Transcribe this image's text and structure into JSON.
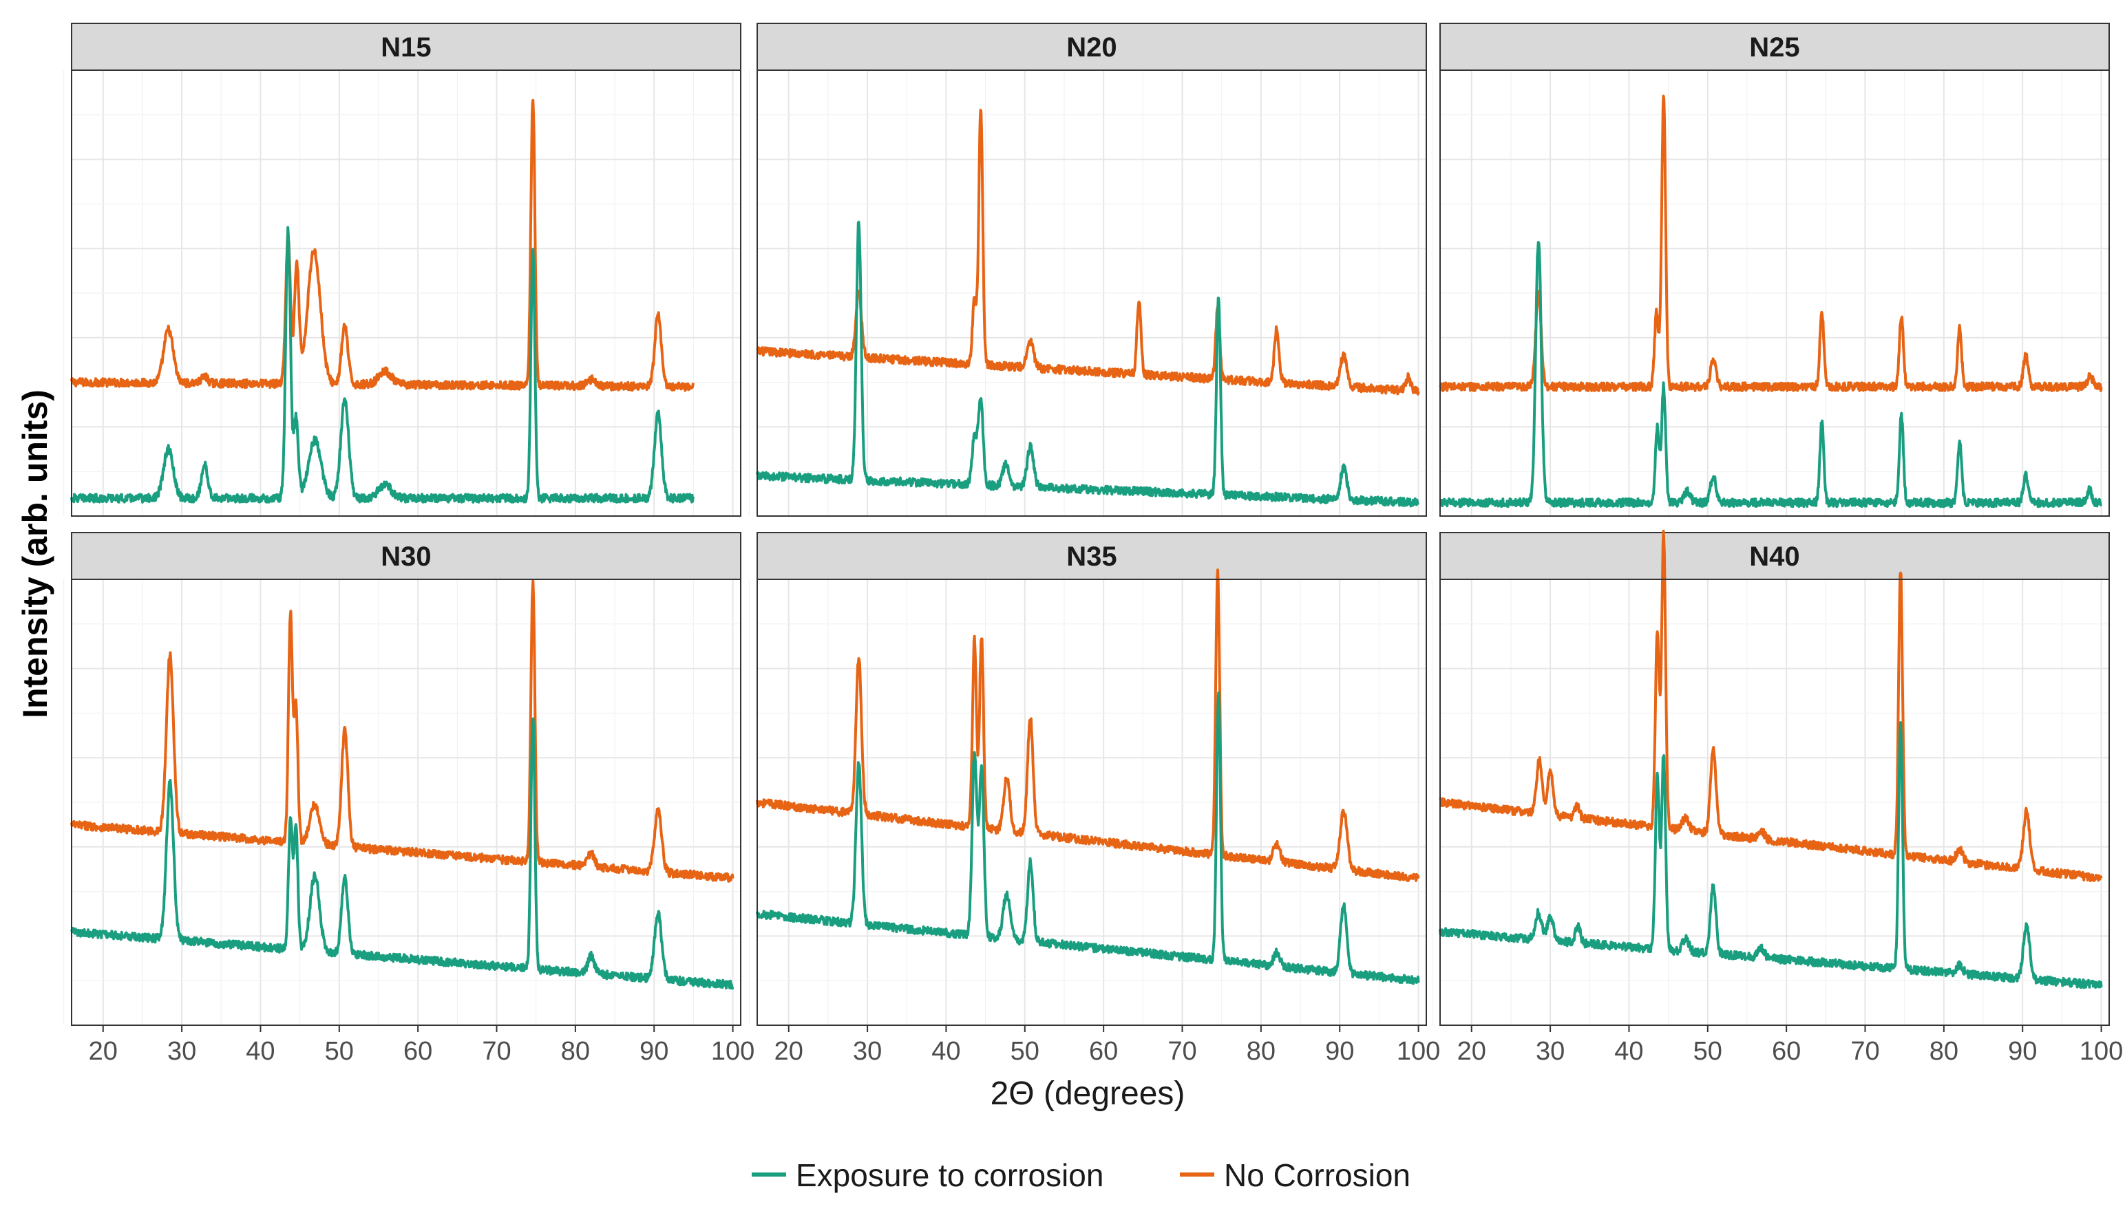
{
  "chart_data": {
    "type": "line",
    "layout": "facet-grid 2x3",
    "xlabel": "2Θ (degrees)",
    "ylabel": "Intensity (arb. units)",
    "xlim": [
      16,
      101
    ],
    "x_ticks": [
      "20",
      "30",
      "40",
      "50",
      "60",
      "70",
      "80",
      "90",
      "100"
    ],
    "x_tick_values": [
      20,
      30,
      40,
      50,
      60,
      70,
      80,
      90,
      100
    ],
    "ylim": [
      0,
      100
    ],
    "y_gridlines": [
      0,
      20,
      40,
      60,
      80
    ],
    "legend": {
      "position": "bottom",
      "entries": [
        {
          "label": "Exposure to corrosion",
          "color": "#1a9e80"
        },
        {
          "label": "No Corrosion",
          "color": "#e66414"
        }
      ]
    },
    "series_colors": {
      "exposure": "#1a9e80",
      "nocorrosion": "#e66414"
    },
    "panels": [
      {
        "name": "N15",
        "x_range": [
          16,
          95
        ],
        "exposure": {
          "base_start": 4.0,
          "base_end": 4.0,
          "peaks": [
            [
              28.3,
              11,
              0.6
            ],
            [
              32.9,
              7.5,
              0.4
            ],
            [
              43.5,
              60,
              0.3
            ],
            [
              44.5,
              18,
              0.3
            ],
            [
              46.9,
              13,
              0.8
            ],
            [
              50.7,
              22,
              0.5
            ],
            [
              55.8,
              3,
              0.8
            ],
            [
              74.6,
              56,
              0.25
            ],
            [
              90.5,
              19,
              0.45
            ]
          ]
        },
        "nocorrosion": {
          "base_start": 30.0,
          "base_end": 29.0,
          "peaks": [
            [
              28.3,
              12,
              0.6
            ],
            [
              32.9,
              1.5,
              0.4
            ],
            [
              43.5,
              33,
              0.3
            ],
            [
              44.6,
              26,
              0.3
            ],
            [
              46.8,
              30,
              0.8
            ],
            [
              50.7,
              13,
              0.4
            ],
            [
              55.8,
              3,
              0.8
            ],
            [
              74.6,
              65,
              0.25
            ],
            [
              82.1,
              1.5,
              0.5
            ],
            [
              90.5,
              16,
              0.4
            ]
          ]
        }
      },
      {
        "name": "N20",
        "x_range": [
          16,
          100
        ],
        "exposure": {
          "base_start": 9.0,
          "base_end": 3.0,
          "peaks": [
            [
              28.9,
              58,
              0.3
            ],
            [
              43.6,
              11,
              0.3
            ],
            [
              44.4,
              19,
              0.3
            ],
            [
              47.6,
              5,
              0.4
            ],
            [
              50.7,
              9,
              0.4
            ],
            [
              74.6,
              45,
              0.25
            ],
            [
              90.5,
              7,
              0.4
            ]
          ]
        },
        "nocorrosion": {
          "base_start": 37.0,
          "base_end": 28.0,
          "peaks": [
            [
              28.9,
              15,
              0.35
            ],
            [
              43.6,
              15,
              0.25
            ],
            [
              44.4,
              58,
              0.25
            ],
            [
              50.7,
              6,
              0.4
            ],
            [
              64.5,
              17,
              0.25
            ],
            [
              74.5,
              16,
              0.25
            ],
            [
              82.0,
              12,
              0.3
            ],
            [
              90.5,
              7,
              0.4
            ],
            [
              98.7,
              3,
              0.3
            ]
          ]
        }
      },
      {
        "name": "N25",
        "x_range": [
          16,
          100
        ],
        "exposure": {
          "base_start": 3.0,
          "base_end": 3.0,
          "peaks": [
            [
              28.5,
              59,
              0.35
            ],
            [
              43.6,
              17,
              0.25
            ],
            [
              44.4,
              26,
              0.25
            ],
            [
              47.4,
              2.5,
              0.4
            ],
            [
              50.7,
              6,
              0.35
            ],
            [
              64.5,
              18,
              0.25
            ],
            [
              74.6,
              20,
              0.25
            ],
            [
              82.0,
              14,
              0.25
            ],
            [
              90.4,
              6,
              0.3
            ],
            [
              98.5,
              3,
              0.3
            ]
          ]
        },
        "nocorrosion": {
          "base_start": 29.0,
          "base_end": 29.0,
          "peaks": [
            [
              28.5,
              21,
              0.35
            ],
            [
              43.5,
              17,
              0.25
            ],
            [
              44.4,
              65,
              0.25
            ],
            [
              50.7,
              6,
              0.35
            ],
            [
              64.5,
              17,
              0.25
            ],
            [
              74.6,
              16,
              0.25
            ],
            [
              82.0,
              13,
              0.25
            ],
            [
              90.4,
              7,
              0.3
            ],
            [
              98.6,
              2.5,
              0.3
            ]
          ]
        }
      },
      {
        "name": "N30",
        "x_range": [
          16,
          100
        ],
        "exposure": {
          "base_start": 21.0,
          "base_end": 9.0,
          "peaks": [
            [
              28.5,
              35,
              0.45
            ],
            [
              43.8,
              29,
              0.25
            ],
            [
              44.5,
              27,
              0.25
            ],
            [
              46.9,
              17,
              0.6
            ],
            [
              50.7,
              17,
              0.4
            ],
            [
              74.6,
              57,
              0.25
            ],
            [
              82.0,
              4,
              0.4
            ],
            [
              90.5,
              15,
              0.45
            ]
          ]
        },
        "nocorrosion": {
          "base_start": 45.0,
          "base_end": 33.0,
          "peaks": [
            [
              28.5,
              40,
              0.45
            ],
            [
              43.8,
              51,
              0.25
            ],
            [
              44.5,
              31,
              0.25
            ],
            [
              46.9,
              9,
              0.6
            ],
            [
              50.7,
              26,
              0.4
            ],
            [
              74.6,
              63,
              0.25
            ],
            [
              82.0,
              3,
              0.4
            ],
            [
              90.5,
              14,
              0.45
            ]
          ]
        }
      },
      {
        "name": "N35",
        "x_range": [
          16,
          100
        ],
        "exposure": {
          "base_start": 25.0,
          "base_end": 10.0,
          "peaks": [
            [
              28.9,
              36,
              0.35
            ],
            [
              43.6,
              41,
              0.3
            ],
            [
              44.5,
              38,
              0.3
            ],
            [
              47.7,
              10,
              0.45
            ],
            [
              50.7,
              18,
              0.35
            ],
            [
              74.6,
              60,
              0.25
            ],
            [
              82.0,
              3,
              0.4
            ],
            [
              90.5,
              15,
              0.4
            ]
          ]
        },
        "nocorrosion": {
          "base_start": 50.0,
          "base_end": 33.0,
          "peaks": [
            [
              28.9,
              35,
              0.35
            ],
            [
              43.6,
              42,
              0.25
            ],
            [
              44.5,
              43,
              0.25
            ],
            [
              47.7,
              12,
              0.4
            ],
            [
              50.7,
              26,
              0.35
            ],
            [
              74.5,
              64,
              0.25
            ],
            [
              82.0,
              4,
              0.4
            ],
            [
              90.5,
              13,
              0.45
            ]
          ]
        }
      },
      {
        "name": "N40",
        "x_range": [
          16,
          100
        ],
        "exposure": {
          "base_start": 21.0,
          "base_end": 9.0,
          "peaks": [
            [
              28.5,
              6,
              0.4
            ],
            [
              30.0,
              5,
              0.4
            ],
            [
              33.5,
              4,
              0.3
            ],
            [
              43.6,
              39,
              0.25
            ],
            [
              44.4,
              44,
              0.25
            ],
            [
              47.2,
              3,
              0.4
            ],
            [
              50.7,
              15,
              0.35
            ],
            [
              56.8,
              2,
              0.4
            ],
            [
              74.5,
              55,
              0.25
            ],
            [
              82.0,
              2,
              0.4
            ],
            [
              90.5,
              12,
              0.4
            ]
          ]
        },
        "nocorrosion": {
          "base_start": 50.0,
          "base_end": 33.0,
          "peaks": [
            [
              28.6,
              12,
              0.35
            ],
            [
              30.0,
              10,
              0.35
            ],
            [
              33.4,
              3,
              0.3
            ],
            [
              43.6,
              44,
              0.25
            ],
            [
              44.4,
              66,
              0.25
            ],
            [
              47.2,
              3,
              0.4
            ],
            [
              50.7,
              19,
              0.35
            ],
            [
              56.8,
              2,
              0.4
            ],
            [
              74.5,
              64,
              0.25
            ],
            [
              82.0,
              3,
              0.4
            ],
            [
              90.5,
              13,
              0.4
            ]
          ]
        }
      }
    ]
  }
}
